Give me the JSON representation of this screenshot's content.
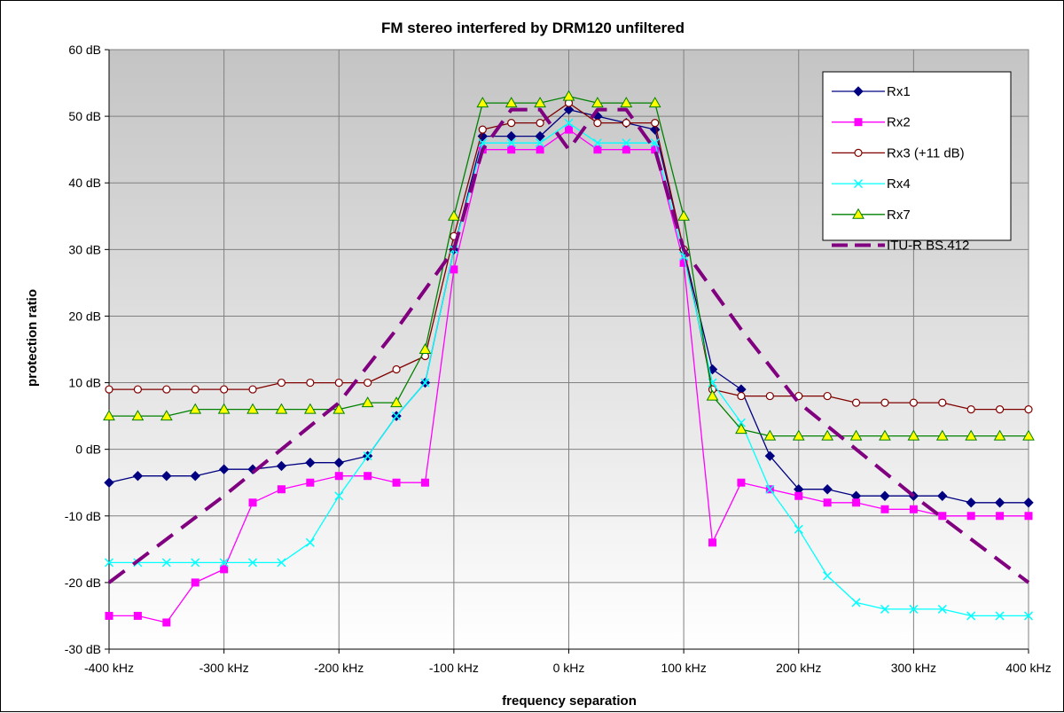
{
  "chart_data": {
    "type": "line",
    "title": "FM stereo interfered by DRM120 unfiltered",
    "xlabel": "frequency separation",
    "ylabel": "protection ratio",
    "xlim": [
      -400,
      400
    ],
    "ylim": [
      -30,
      60
    ],
    "x_ticks": [
      -400,
      -300,
      -200,
      -100,
      0,
      100,
      200,
      300,
      400
    ],
    "x_tick_labels": [
      "-400 kHz",
      "-300 kHz",
      "-200 kHz",
      "-100 kHz",
      "0 kHz",
      "100 kHz",
      "200 kHz",
      "300 kHz",
      "400 kHz"
    ],
    "y_ticks": [
      -30,
      -20,
      -10,
      0,
      10,
      20,
      30,
      40,
      50,
      60
    ],
    "y_tick_labels": [
      "-30 dB",
      "-20 dB",
      "-10 dB",
      "0 dB",
      "10 dB",
      "20 dB",
      "30 dB",
      "40 dB",
      "50 dB",
      "60 dB"
    ],
    "grid": true,
    "legend_position": "top-right",
    "x": [
      -400,
      -375,
      -350,
      -325,
      -300,
      -275,
      -250,
      -225,
      -200,
      -175,
      -150,
      -125,
      -100,
      -75,
      -50,
      -25,
      0,
      25,
      50,
      75,
      100,
      125,
      150,
      175,
      200,
      225,
      250,
      275,
      300,
      325,
      350,
      375,
      400
    ],
    "series": [
      {
        "name": "Rx1",
        "color": "#000080",
        "marker": "diamond",
        "values": [
          -5,
          -4,
          -4,
          -4,
          -3,
          -3,
          -2.5,
          -2,
          -2,
          -1,
          5,
          10,
          30,
          47,
          47,
          47,
          51,
          50,
          49,
          48,
          30,
          12,
          9,
          -1,
          -6,
          -6,
          -7,
          -7,
          -7,
          -7,
          -8,
          -8,
          -8
        ]
      },
      {
        "name": "Rx2",
        "color": "#ff00ff",
        "marker": "square",
        "values": [
          -25,
          -25,
          -26,
          -20,
          -18,
          -8,
          -6,
          -5,
          -4,
          -4,
          -5,
          -5,
          27,
          45,
          45,
          45,
          48,
          45,
          45,
          45,
          28,
          -14,
          -5,
          -6,
          -7,
          -8,
          -8,
          -9,
          -9,
          -10,
          -10,
          -10,
          -10
        ]
      },
      {
        "name": "Rx3 (+11 dB)",
        "color": "#800000",
        "marker": "circle",
        "values": [
          9,
          9,
          9,
          9,
          9,
          9,
          10,
          10,
          10,
          10,
          12,
          14,
          32,
          48,
          49,
          49,
          52,
          49,
          49,
          49,
          30,
          9,
          8,
          8,
          8,
          8,
          7,
          7,
          7,
          7,
          6,
          6,
          6
        ]
      },
      {
        "name": "Rx4",
        "color": "#00ffff",
        "marker": "x",
        "values": [
          -17,
          -17,
          -17,
          -17,
          -17,
          -17,
          -17,
          -14,
          -7,
          -1,
          5,
          10,
          30,
          46,
          46,
          46,
          49,
          46,
          46,
          46,
          29,
          10,
          4,
          -6,
          -12,
          -19,
          -23,
          -24,
          -24,
          -24,
          -25,
          -25,
          -25
        ]
      },
      {
        "name": "Rx7",
        "color": "#008000",
        "marker": "triangle",
        "values": [
          5,
          5,
          5,
          6,
          6,
          6,
          6,
          6,
          6,
          7,
          7,
          15,
          35,
          52,
          52,
          52,
          53,
          52,
          52,
          52,
          35,
          8,
          3,
          2,
          2,
          2,
          2,
          2,
          2,
          2,
          2,
          2,
          2
        ]
      },
      {
        "name": "ITU-R BS.412",
        "color": "#800080",
        "marker": "none",
        "dashed": true,
        "x": [
          -400,
          -300,
          -200,
          -150,
          -100,
          -75,
          -50,
          -25,
          0,
          25,
          50,
          75,
          100,
          150,
          200,
          300,
          400
        ],
        "values": [
          -20,
          -7,
          7,
          18,
          30,
          45,
          51,
          51,
          45,
          51,
          51,
          45,
          30,
          18,
          7,
          -7,
          -20
        ]
      }
    ]
  }
}
